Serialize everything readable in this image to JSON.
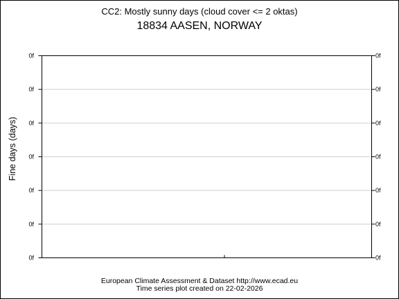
{
  "chart_data": {
    "type": "line",
    "title": "CC2: Mostly sunny days (cloud cover <= 2 oktas)",
    "subtitle": "18834 AASEN, NORWAY",
    "ylabel": "Fine days (days)",
    "xlabel": "",
    "y_tick_labels": [
      "0f",
      "0f",
      "0f",
      "0f",
      "0f",
      "0f",
      "0f"
    ],
    "y_tick_labels_right": [
      "0f",
      "0f",
      "0f",
      "0f",
      "0f",
      "0f",
      "0f"
    ],
    "grid": true,
    "series": []
  },
  "footer": {
    "line1": "European Climate Assessment & Dataset  http://www.ecad.eu",
    "line2": "Time series plot created on 22-02-2026"
  }
}
